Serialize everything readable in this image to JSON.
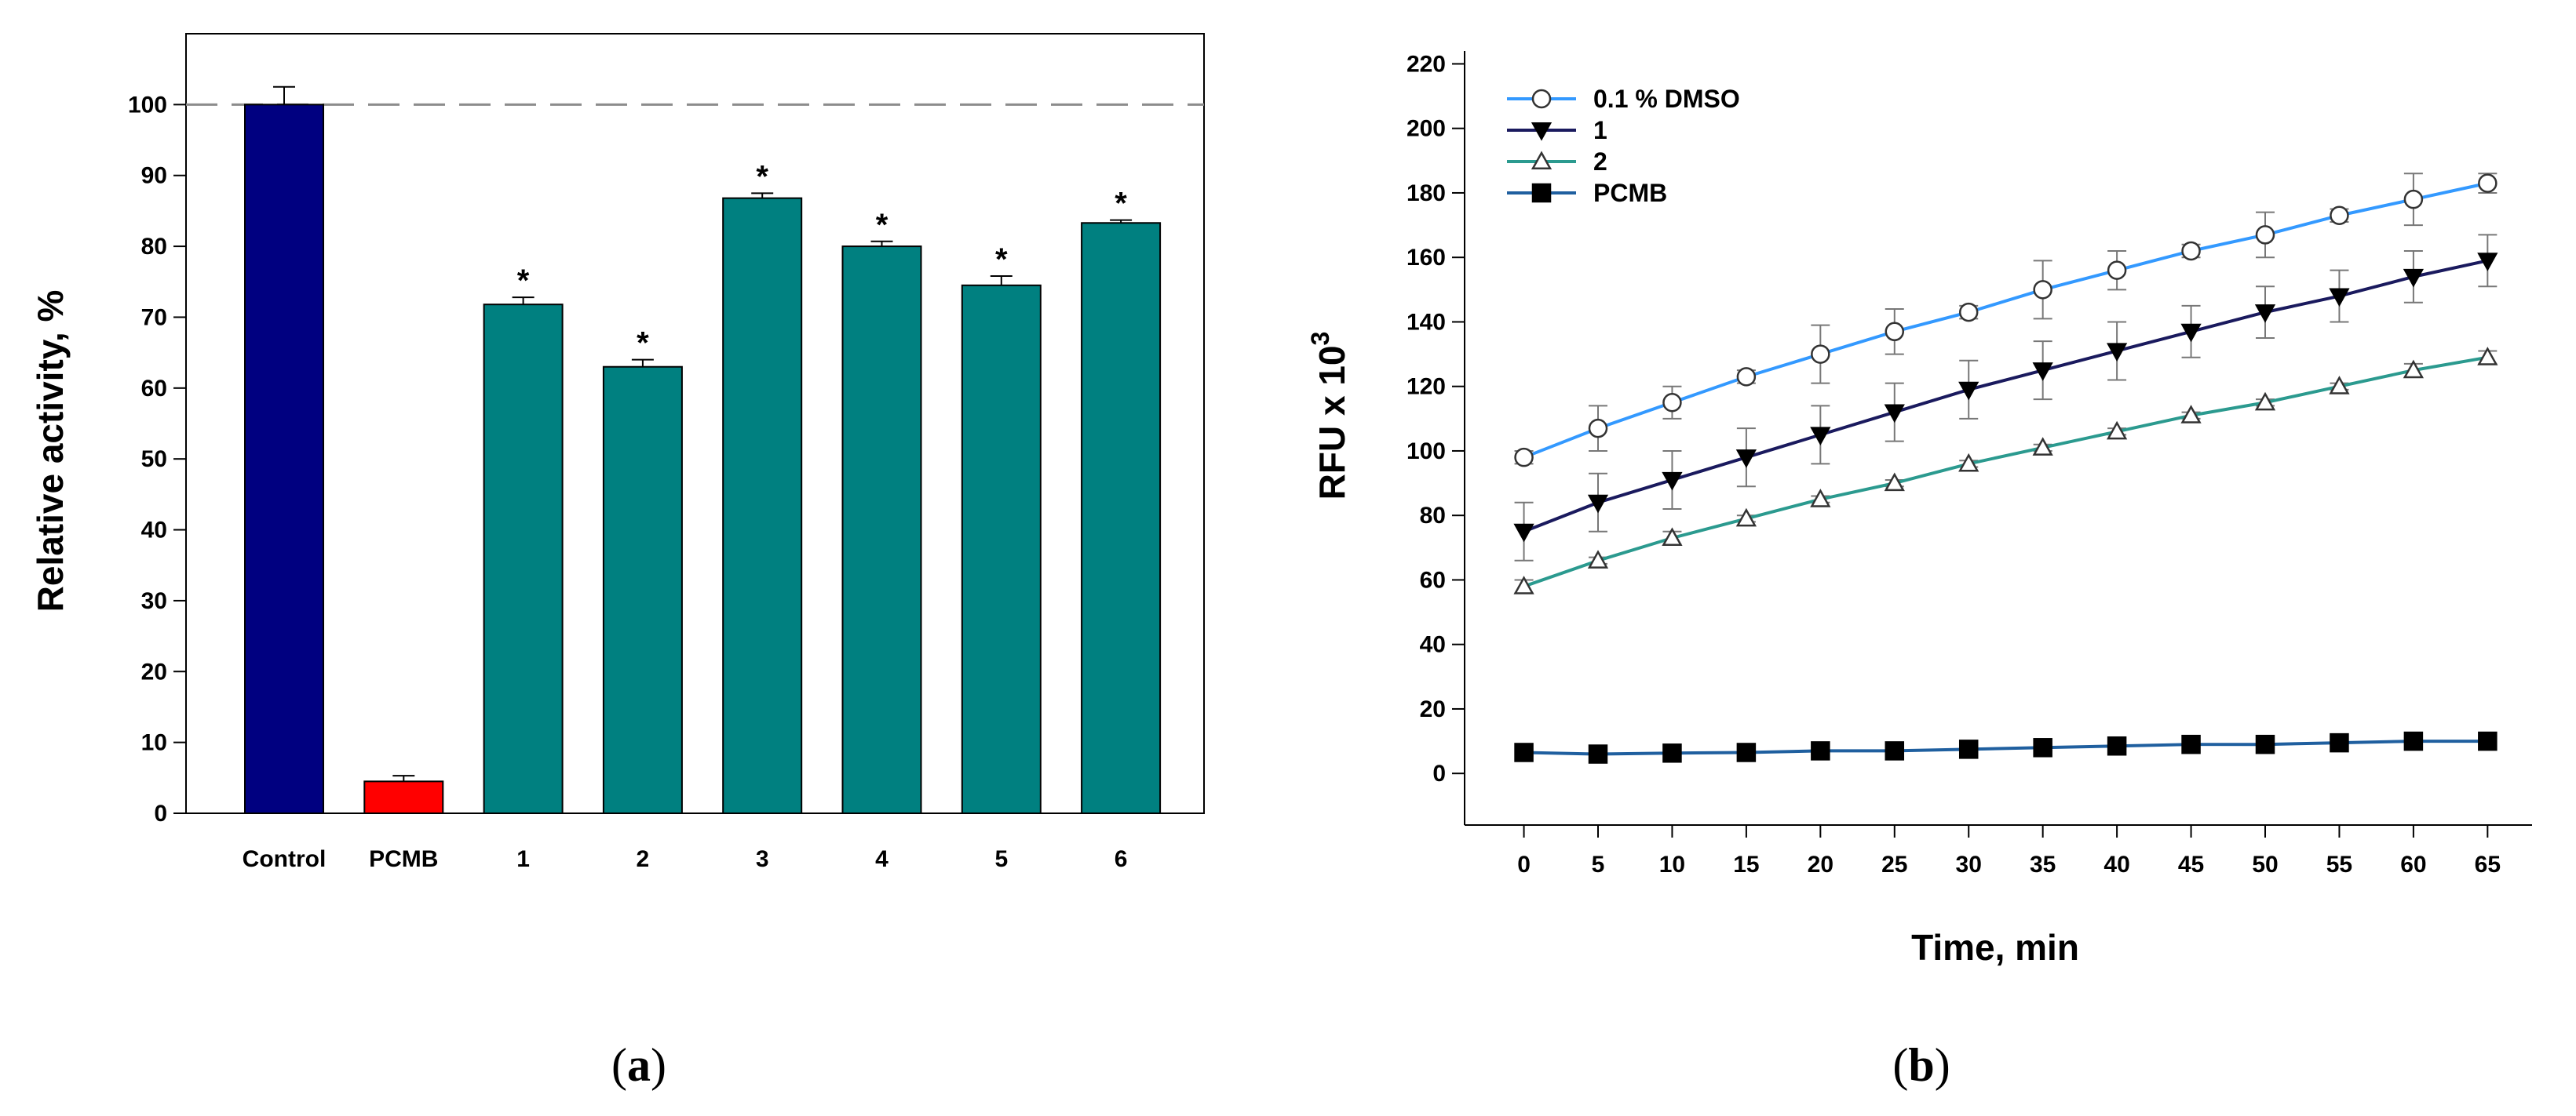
{
  "chart_data": [
    {
      "type": "bar",
      "ylabel": "Relative activity, %",
      "ylim": [
        0,
        110
      ],
      "yticks": [
        0,
        10,
        20,
        30,
        40,
        50,
        60,
        70,
        80,
        90,
        100
      ],
      "reference_line": 100,
      "categories": [
        "Control",
        "PCMB",
        "1",
        "2",
        "3",
        "4",
        "5",
        "6"
      ],
      "values": [
        100,
        4.5,
        71.8,
        63,
        86.8,
        80,
        74.5,
        83.3
      ],
      "errors": [
        2.5,
        0.8,
        1.0,
        1.0,
        0.7,
        0.7,
        1.3,
        0.4
      ],
      "significance": [
        "",
        "",
        "*",
        "*",
        "*",
        "*",
        "*",
        "*"
      ],
      "colors": [
        "#000080",
        "#ff0000",
        "#008080",
        "#008080",
        "#008080",
        "#008080",
        "#008080",
        "#008080"
      ],
      "panel_label": {
        "open": "(",
        "letter": "a",
        "close": ")"
      }
    },
    {
      "type": "line",
      "xlabel": "Time, min",
      "ylabel_base": "RFU x 10",
      "ylabel_exp": "3",
      "xlim": [
        -4,
        68
      ],
      "ylim": [
        -16,
        224
      ],
      "xticks": [
        0,
        5,
        10,
        15,
        20,
        25,
        30,
        35,
        40,
        45,
        50,
        55,
        60,
        65
      ],
      "yticks": [
        0,
        20,
        40,
        60,
        80,
        100,
        120,
        140,
        160,
        180,
        200,
        220
      ],
      "x": [
        0,
        5,
        10,
        15,
        20,
        25,
        30,
        35,
        40,
        45,
        50,
        55,
        60,
        65
      ],
      "series": [
        {
          "name": "0.1 % DMSO",
          "color": "#3399ff",
          "marker": "circle-open",
          "values": [
            98,
            107,
            115,
            123,
            130,
            137,
            143,
            150,
            156,
            162,
            167,
            173,
            178,
            183
          ],
          "errors": [
            2,
            7,
            5,
            2,
            9,
            7,
            2,
            9,
            6,
            2,
            7,
            2,
            8,
            3
          ]
        },
        {
          "name": "1",
          "color": "#1a1a5e",
          "marker": "triangle-down-filled",
          "values": [
            75,
            84,
            91,
            98,
            105,
            112,
            119,
            125,
            131,
            137,
            143,
            148,
            154,
            159
          ],
          "errors": [
            9,
            9,
            9,
            9,
            9,
            9,
            9,
            9,
            9,
            8,
            8,
            8,
            8,
            8
          ]
        },
        {
          "name": "2",
          "color": "#2b9a8f",
          "marker": "triangle-up-open",
          "values": [
            58,
            66,
            73,
            79,
            85,
            90,
            96,
            101,
            106,
            111,
            115,
            120,
            125,
            129
          ],
          "errors": [
            2,
            1,
            2,
            1,
            1,
            1,
            1,
            1,
            1,
            1,
            1,
            1,
            2,
            2
          ]
        },
        {
          "name": "PCMB",
          "color": "#1f5f9f",
          "marker": "square-filled",
          "values": [
            6.5,
            6,
            6.3,
            6.5,
            7,
            7,
            7.5,
            8,
            8.5,
            9,
            9,
            9.5,
            10,
            10
          ],
          "errors": [
            1,
            1,
            1,
            1,
            1,
            1,
            1,
            1,
            1,
            1,
            1,
            1,
            1,
            1
          ]
        }
      ],
      "panel_label": {
        "open": "(",
        "letter": "b",
        "close": ")"
      }
    }
  ]
}
